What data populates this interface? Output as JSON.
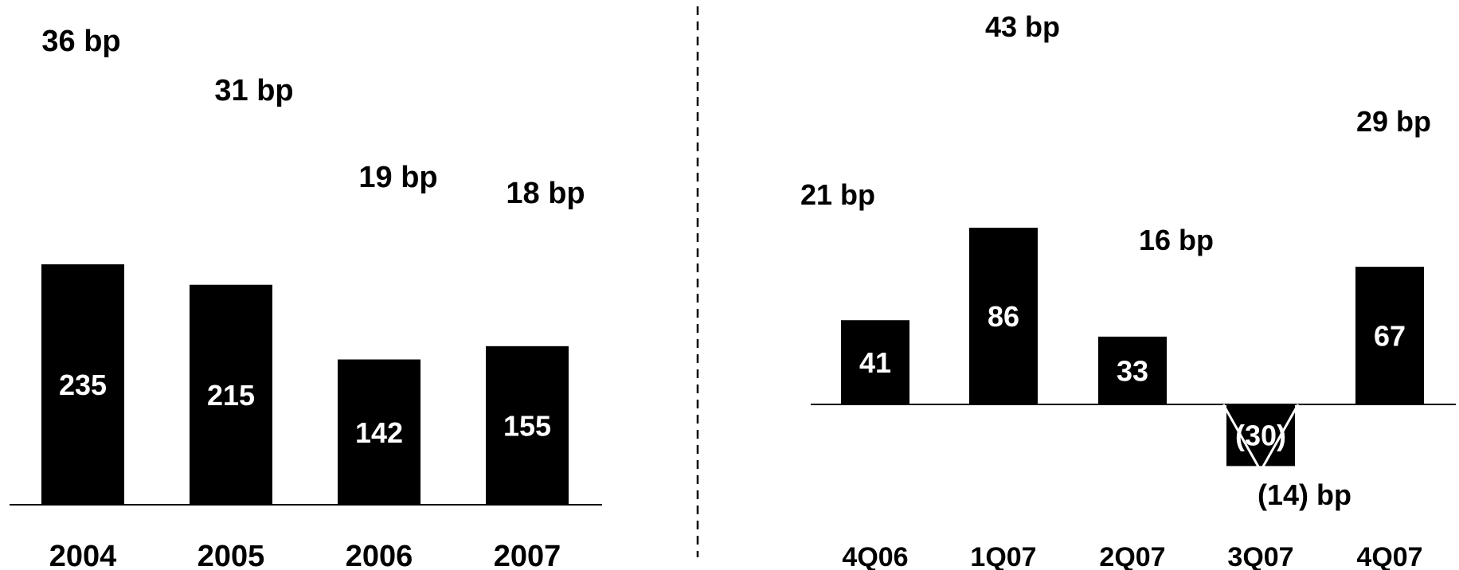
{
  "chart_data": [
    {
      "type": "bar",
      "categories": [
        "2004",
        "2005",
        "2006",
        "2007"
      ],
      "values": [
        235,
        215,
        142,
        155
      ],
      "value_labels": [
        "235",
        "215",
        "142",
        "155"
      ],
      "bp_labels": [
        "36 bp",
        "31 bp",
        "19 bp",
        "18 bp"
      ],
      "ylim": [
        0,
        260
      ],
      "colors": {
        "bar": "#000000",
        "bar_label": "#ffffff",
        "text": "#000000"
      }
    },
    {
      "type": "bar",
      "categories": [
        "4Q06",
        "1Q07",
        "2Q07",
        "3Q07",
        "4Q07"
      ],
      "values": [
        41,
        86,
        33,
        -30,
        67
      ],
      "value_labels": [
        "41",
        "86",
        "33",
        "(30)",
        "67"
      ],
      "bp_labels": [
        "21 bp",
        "43 bp",
        "16 bp",
        "(14) bp",
        "29 bp"
      ],
      "ylim": [
        -35,
        125
      ],
      "colors": {
        "bar": "#000000",
        "bar_label": "#ffffff",
        "text": "#000000"
      }
    }
  ]
}
